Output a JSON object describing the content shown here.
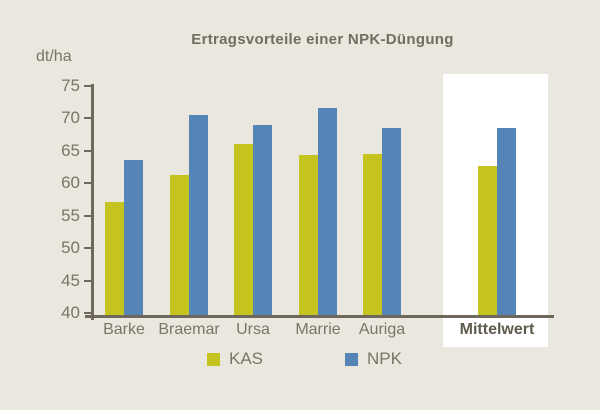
{
  "page": {
    "background_color": "#e9e7de",
    "text_color": "#7b7467",
    "axis_color": "#6e685c",
    "title_color": "#736d61",
    "highlight_color": "#ffffff"
  },
  "chart_data": {
    "type": "bar",
    "title": "Ertragsvorteile einer NPK-Düngung",
    "ylabel": "dt/ha",
    "xlabel": "",
    "categories": [
      "Barke",
      "Braemar",
      "Ursa",
      "Marrie",
      "Auriga",
      "Mittelwert"
    ],
    "series": [
      {
        "name": "KAS",
        "color": "#c5c31e",
        "values": [
          57.1,
          61.3,
          66.0,
          64.3,
          64.4,
          62.6
        ]
      },
      {
        "name": "NPK",
        "color": "#5584b6",
        "values": [
          63.5,
          70.4,
          68.9,
          71.5,
          68.4,
          68.5
        ]
      }
    ],
    "ylim": [
      40,
      75
    ],
    "yticks": [
      40,
      45,
      50,
      55,
      60,
      65,
      70,
      75
    ],
    "grid": false,
    "legend_position": "bottom",
    "highlight_category": "Mittelwert",
    "annotations": []
  }
}
